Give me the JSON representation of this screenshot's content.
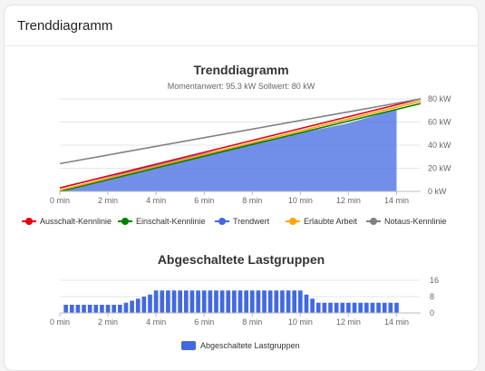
{
  "card": {
    "title": "Trenddiagramm"
  },
  "charts": [
    {
      "title": "Trenddiagramm",
      "subtitle": "Momentanwert: 95.3 kW  Sollwert: 80 kW"
    },
    {
      "title": "Abgeschaltete Lastgruppen"
    }
  ],
  "chart_data": [
    {
      "type": "area",
      "title": "Trenddiagramm",
      "subtitle": "Momentanwert: 95.3 kW  Sollwert: 80 kW",
      "x_ticks": [
        "0 min",
        "2 min",
        "4 min",
        "6 min",
        "8 min",
        "10 min",
        "12 min",
        "14 min"
      ],
      "y_ticks": [
        "0 kW",
        "20 kW",
        "40 kW",
        "60 kW",
        "80 kW"
      ],
      "xlim": [
        0,
        15
      ],
      "ylim": [
        0,
        80
      ],
      "y_axis_position": "right",
      "grid": true,
      "legend_position": "bottom",
      "series": [
        {
          "name": "Ausschalt-Kennlinie",
          "color": "#e8000d",
          "type": "line",
          "x": [
            0,
            15
          ],
          "y": [
            3,
            80
          ]
        },
        {
          "name": "Einschalt-Kennlinie",
          "color": "#008000",
          "type": "line",
          "x": [
            0,
            15
          ],
          "y": [
            0,
            76
          ]
        },
        {
          "name": "Trendwert",
          "color": "#4169e1",
          "type": "area",
          "x": [
            0,
            3,
            6,
            9,
            12,
            14
          ],
          "y": [
            1,
            18,
            33,
            46,
            59,
            71
          ]
        },
        {
          "name": "Erlaubte Arbeit",
          "color": "#ffa500",
          "type": "line",
          "x": [
            0,
            15
          ],
          "y": [
            1,
            78
          ]
        },
        {
          "name": "Notaus-Kennlinie",
          "color": "#808080",
          "type": "line",
          "x": [
            0,
            15
          ],
          "y": [
            24,
            80
          ]
        }
      ]
    },
    {
      "type": "bar",
      "title": "Abgeschaltete Lastgruppen",
      "x_ticks": [
        "0 min",
        "2 min",
        "4 min",
        "6 min",
        "8 min",
        "10 min",
        "12 min",
        "14 min"
      ],
      "y_ticks": [
        "0",
        "8",
        "16"
      ],
      "xlim": [
        0,
        15
      ],
      "ylim": [
        0,
        16
      ],
      "y_axis_position": "right",
      "legend_position": "bottom",
      "series": [
        {
          "name": "Abgeschaltete Lastgruppen",
          "color": "#4169e1",
          "x": [
            0.25,
            0.5,
            0.75,
            1,
            1.25,
            1.5,
            1.75,
            2,
            2.25,
            2.5,
            2.75,
            3,
            3.25,
            3.5,
            3.75,
            4,
            4.25,
            4.5,
            4.75,
            5,
            5.25,
            5.5,
            5.75,
            6,
            6.25,
            6.5,
            6.75,
            7,
            7.25,
            7.5,
            7.75,
            8,
            8.25,
            8.5,
            8.75,
            9,
            9.25,
            9.5,
            9.75,
            10,
            10.25,
            10.5,
            10.75,
            11,
            11.25,
            11.5,
            11.75,
            12,
            12.25,
            12.5,
            12.75,
            13,
            13.25,
            13.5,
            13.75,
            14
          ],
          "values": [
            4,
            4,
            4,
            4,
            4,
            4,
            4,
            4,
            4,
            4,
            5,
            6,
            7,
            8,
            9,
            11,
            11,
            11,
            11,
            11,
            11,
            11,
            11,
            11,
            11,
            11,
            11,
            11,
            11,
            11,
            11,
            11,
            11,
            11,
            11,
            11,
            11,
            11,
            11,
            11,
            9,
            7,
            5,
            5,
            5,
            5,
            5,
            5,
            5,
            5,
            5,
            5,
            5,
            5,
            5,
            5
          ]
        }
      ]
    }
  ]
}
